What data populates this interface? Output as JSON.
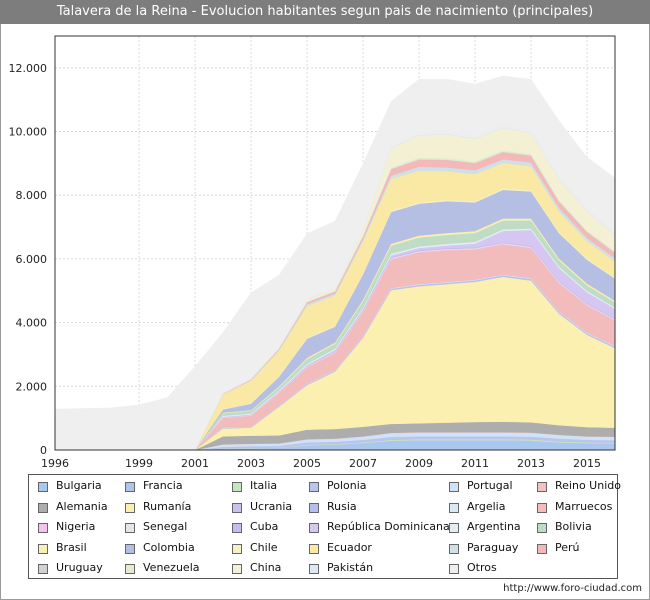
{
  "title": "Talavera de la Reina - Evolucion habitantes segun pais de nacimiento (principales)",
  "source": "http://www.foro-ciudad.com",
  "chart_data": {
    "type": "area",
    "stacked": true,
    "grid": true,
    "x": [
      1996,
      1998,
      1999,
      2000,
      2001,
      2002,
      2003,
      2004,
      2005,
      2006,
      2007,
      2008,
      2009,
      2010,
      2011,
      2012,
      2013,
      2014,
      2015,
      2016
    ],
    "xlim": [
      1996,
      2016
    ],
    "ylim": [
      0,
      13000
    ],
    "x_ticks": [
      "1996",
      "1999",
      "2001",
      "2003",
      "2005",
      "2007",
      "2009",
      "2011",
      "2013",
      "2015"
    ],
    "x_tick_values": [
      1996,
      1999,
      2001,
      2003,
      2005,
      2007,
      2009,
      2011,
      2013,
      2015
    ],
    "y_ticks": [
      "0",
      "2.000",
      "4.000",
      "6.000",
      "8.000",
      "10.000",
      "12.000"
    ],
    "y_tick_values": [
      0,
      2000,
      4000,
      6000,
      8000,
      10000,
      12000
    ],
    "total": {
      "label": "",
      "color": "#efefef",
      "values": [
        1290,
        1330,
        1420,
        1650,
        2630,
        3700,
        4950,
        5500,
        6800,
        7200,
        9000,
        10950,
        11650,
        11650,
        11500,
        11750,
        11650,
        10350,
        9200,
        8550
      ]
    },
    "series": [
      {
        "name": "Bulgaria",
        "color": "#a8c8f0",
        "values": [
          0,
          0,
          0,
          0,
          0,
          30,
          40,
          50,
          120,
          140,
          180,
          250,
          270,
          270,
          270,
          270,
          260,
          200,
          180,
          170
        ]
      },
      {
        "name": "Francia",
        "color": "#b3c4ea",
        "values": [
          0,
          0,
          0,
          0,
          0,
          20,
          20,
          20,
          30,
          30,
          40,
          40,
          40,
          40,
          40,
          40,
          40,
          40,
          35,
          35
        ]
      },
      {
        "name": "Italia",
        "color": "#c6e6c2",
        "values": [
          0,
          0,
          0,
          0,
          0,
          10,
          10,
          10,
          20,
          20,
          20,
          30,
          30,
          30,
          30,
          30,
          30,
          30,
          25,
          25
        ]
      },
      {
        "name": "Polonia",
        "color": "#b9c4ef",
        "values": [
          0,
          0,
          0,
          0,
          0,
          40,
          50,
          50,
          70,
          70,
          80,
          90,
          90,
          90,
          90,
          90,
          90,
          90,
          80,
          80
        ]
      },
      {
        "name": "Portugal",
        "color": "#cfe3f6",
        "values": [
          0,
          0,
          0,
          0,
          0,
          70,
          70,
          70,
          90,
          90,
          100,
          120,
          120,
          120,
          120,
          120,
          120,
          110,
          100,
          100
        ]
      },
      {
        "name": "Reino Unido",
        "color": "#f4c2c2",
        "values": [
          0,
          0,
          0,
          0,
          0,
          10,
          10,
          10,
          10,
          10,
          10,
          10,
          10,
          10,
          10,
          10,
          10,
          10,
          10,
          10
        ]
      },
      {
        "name": "Alemania",
        "color": "#adadad",
        "values": [
          0,
          0,
          0,
          0,
          0,
          250,
          250,
          250,
          300,
          300,
          300,
          280,
          280,
          300,
          320,
          330,
          320,
          300,
          290,
          280
        ]
      },
      {
        "name": "Rumanía",
        "color": "#fbf0b0",
        "values": [
          0,
          0,
          0,
          0,
          0,
          250,
          250,
          900,
          1400,
          1800,
          2800,
          4200,
          4300,
          4350,
          4400,
          4550,
          4450,
          3500,
          2900,
          2500
        ]
      },
      {
        "name": "Ucrania",
        "color": "#c9c2ee",
        "values": [
          0,
          0,
          0,
          0,
          0,
          5,
          5,
          5,
          10,
          10,
          10,
          15,
          15,
          15,
          15,
          15,
          15,
          15,
          15,
          15
        ]
      },
      {
        "name": "Rusia",
        "color": "#b4bff0",
        "values": [
          0,
          0,
          0,
          0,
          0,
          10,
          10,
          15,
          20,
          20,
          25,
          30,
          30,
          30,
          30,
          35,
          35,
          30,
          30,
          30
        ]
      },
      {
        "name": "Argelia",
        "color": "#d7e9f4",
        "values": [
          0,
          0,
          0,
          0,
          0,
          10,
          10,
          10,
          15,
          15,
          15,
          20,
          20,
          20,
          20,
          20,
          20,
          20,
          20,
          20
        ]
      },
      {
        "name": "Marruecos",
        "color": "#f2bcbc",
        "values": [
          0,
          0,
          0,
          0,
          0,
          300,
          350,
          400,
          500,
          550,
          750,
          900,
          1000,
          1000,
          950,
          950,
          950,
          900,
          850,
          800
        ]
      },
      {
        "name": "Nigeria",
        "color": "#f2c4ec",
        "values": [
          0,
          0,
          0,
          0,
          0,
          10,
          10,
          10,
          15,
          15,
          15,
          20,
          20,
          20,
          20,
          20,
          20,
          20,
          20,
          20
        ]
      },
      {
        "name": "Senegal",
        "color": "#e6e6e6",
        "values": [
          0,
          0,
          0,
          0,
          0,
          10,
          10,
          10,
          15,
          15,
          15,
          20,
          20,
          20,
          20,
          20,
          20,
          20,
          20,
          20
        ]
      },
      {
        "name": "Cuba",
        "color": "#c4bdf0",
        "values": [
          0,
          0,
          0,
          0,
          0,
          10,
          10,
          10,
          20,
          20,
          20,
          30,
          30,
          30,
          30,
          30,
          30,
          30,
          30,
          30
        ]
      },
      {
        "name": "República Dominicana",
        "color": "#d5c6f2",
        "values": [
          0,
          0,
          0,
          0,
          0,
          10,
          10,
          20,
          30,
          40,
          50,
          60,
          70,
          80,
          120,
          350,
          500,
          400,
          350,
          300
        ]
      },
      {
        "name": "Argentina",
        "color": "#e3eef4",
        "values": [
          0,
          0,
          0,
          0,
          0,
          30,
          30,
          30,
          40,
          40,
          40,
          50,
          50,
          50,
          50,
          50,
          50,
          45,
          40,
          40
        ]
      },
      {
        "name": "Bolivia",
        "color": "#bfdcc4",
        "values": [
          0,
          0,
          0,
          0,
          0,
          80,
          90,
          100,
          150,
          150,
          200,
          250,
          280,
          280,
          280,
          280,
          250,
          200,
          180,
          160
        ]
      },
      {
        "name": "Brasil",
        "color": "#fbeeb1",
        "values": [
          0,
          0,
          0,
          0,
          0,
          20,
          20,
          30,
          40,
          40,
          50,
          60,
          60,
          60,
          60,
          60,
          60,
          50,
          50,
          50
        ]
      },
      {
        "name": "Colombia",
        "color": "#b5bfe3",
        "values": [
          0,
          0,
          0,
          0,
          0,
          100,
          200,
          300,
          600,
          500,
          800,
          1000,
          1000,
          1000,
          900,
          900,
          850,
          800,
          750,
          700
        ]
      },
      {
        "name": "Chile",
        "color": "#f6f0c6",
        "values": [
          0,
          0,
          0,
          0,
          0,
          20,
          20,
          20,
          30,
          30,
          30,
          40,
          40,
          40,
          40,
          40,
          40,
          35,
          35,
          35
        ]
      },
      {
        "name": "Ecuador",
        "color": "#fae9a4",
        "values": [
          0,
          0,
          0,
          0,
          0,
          450,
          700,
          800,
          1000,
          950,
          1000,
          1000,
          1000,
          900,
          850,
          800,
          750,
          650,
          550,
          500
        ]
      },
      {
        "name": "Paraguay",
        "color": "#cfe0e6",
        "values": [
          0,
          0,
          0,
          0,
          0,
          10,
          20,
          30,
          60,
          60,
          80,
          100,
          120,
          120,
          120,
          120,
          120,
          110,
          100,
          100
        ]
      },
      {
        "name": "Perú",
        "color": "#f4b8b8",
        "values": [
          0,
          0,
          0,
          0,
          0,
          10,
          20,
          30,
          50,
          60,
          80,
          200,
          220,
          230,
          220,
          220,
          210,
          190,
          180,
          170
        ]
      },
      {
        "name": "Uruguay",
        "color": "#d2d2d2",
        "values": [
          0,
          0,
          0,
          0,
          0,
          5,
          5,
          5,
          10,
          10,
          10,
          15,
          15,
          15,
          15,
          15,
          15,
          15,
          15,
          15
        ]
      },
      {
        "name": "Venezuela",
        "color": "#e4ecd0",
        "values": [
          0,
          0,
          0,
          0,
          0,
          5,
          5,
          10,
          20,
          20,
          30,
          40,
          50,
          50,
          50,
          50,
          50,
          50,
          45,
          45
        ]
      },
      {
        "name": "China",
        "color": "#f3f0d4",
        "values": [
          0,
          0,
          0,
          0,
          0,
          10,
          20,
          30,
          50,
          60,
          150,
          600,
          700,
          750,
          700,
          700,
          650,
          650,
          600,
          500
        ]
      },
      {
        "name": "Pakistán",
        "color": "#dbe8f8",
        "values": [
          0,
          0,
          0,
          0,
          0,
          5,
          5,
          5,
          10,
          10,
          10,
          20,
          20,
          20,
          20,
          20,
          20,
          20,
          20,
          20
        ]
      },
      {
        "name": "Otros",
        "color": "#eeeeee",
        "values": [
          0,
          0,
          0,
          0,
          0,
          20,
          20,
          25,
          30,
          35,
          45,
          80,
          90,
          90,
          90,
          90,
          90,
          90,
          90,
          90
        ]
      }
    ]
  }
}
